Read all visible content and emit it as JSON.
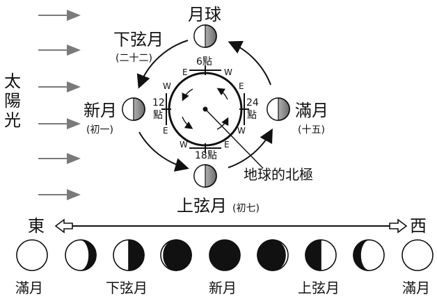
{
  "top_label": "月球",
  "sun_label": "太陽光",
  "phases": {
    "third_quarter": "下弦月",
    "third_quarter_day": "(二十二)",
    "new_moon": "新月",
    "new_moon_day": "(初一)",
    "full_moon": "滿月",
    "full_moon_day": "(十五)",
    "first_quarter": "上弦月",
    "first_quarter_day": "(初七)"
  },
  "clock": {
    "top": "6點",
    "left_num": "12",
    "left_unit": "點",
    "right_num": "24",
    "right_unit": "點",
    "bottom": "18點"
  },
  "compass": {
    "east": "E",
    "west": "W"
  },
  "north_pole_label": "地球的北極",
  "direction": {
    "east": "東",
    "west": "西"
  },
  "bottom_labels": [
    "滿月",
    "下弦月",
    "新月",
    "上弦月",
    "滿月"
  ],
  "colors": {
    "ink": "#111111",
    "arrow_gray": "#7a7a7a",
    "paper": "#ffffff"
  }
}
